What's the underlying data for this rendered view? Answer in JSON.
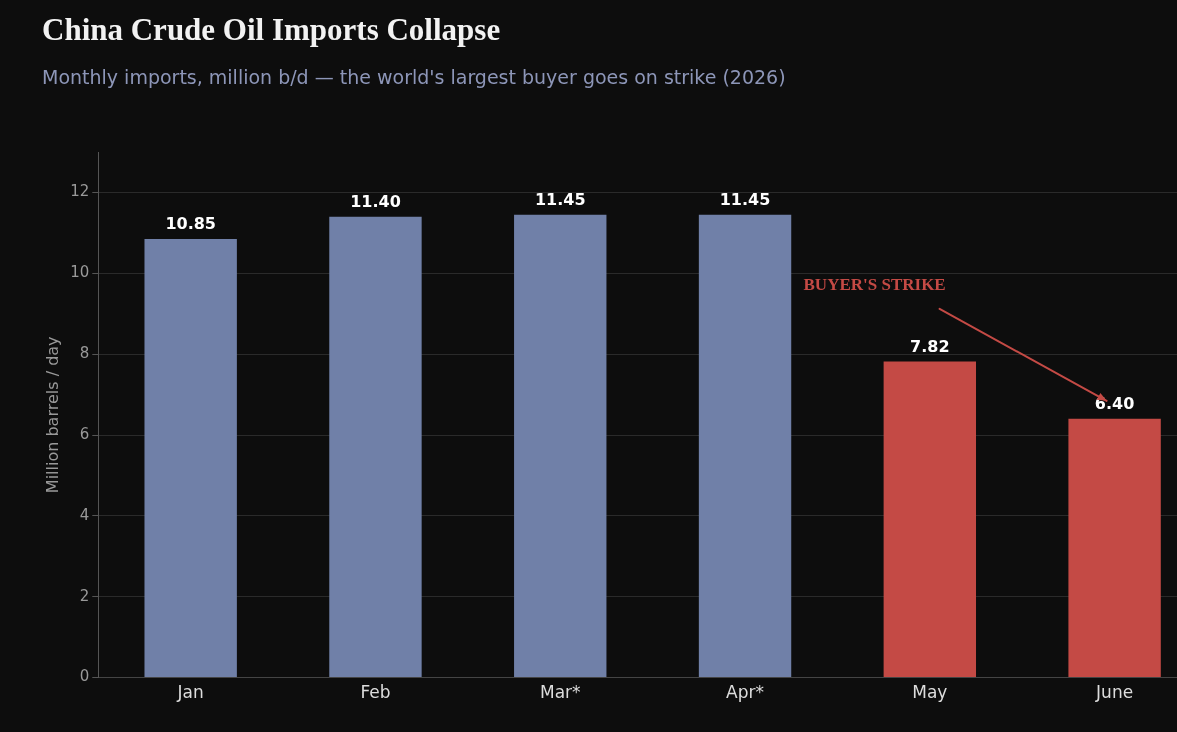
{
  "chart_data": {
    "type": "bar",
    "title": "China Crude Oil Imports Collapse",
    "subtitle": "Monthly imports, million b/d — the world's largest buyer goes on strike (2026)",
    "ylabel": "Million barrels / day",
    "categories": [
      "Jan",
      "Feb",
      "Mar*",
      "Apr*",
      "May",
      "June"
    ],
    "values": [
      10.85,
      11.4,
      11.45,
      11.45,
      7.82,
      6.4
    ],
    "colors": [
      "#7080a8",
      "#7080a8",
      "#7080a8",
      "#7080a8",
      "#c44a45",
      "#c44a45"
    ],
    "ylim": [
      0,
      13
    ],
    "yticks": [
      0,
      2,
      4,
      6,
      8,
      10,
      12
    ],
    "grid": "y",
    "legend": false,
    "value_labels": [
      "10.85",
      "11.40",
      "11.45",
      "11.45",
      "7.82",
      "6.40"
    ],
    "annotations": [
      "BUYER'S STRIKE"
    ]
  }
}
